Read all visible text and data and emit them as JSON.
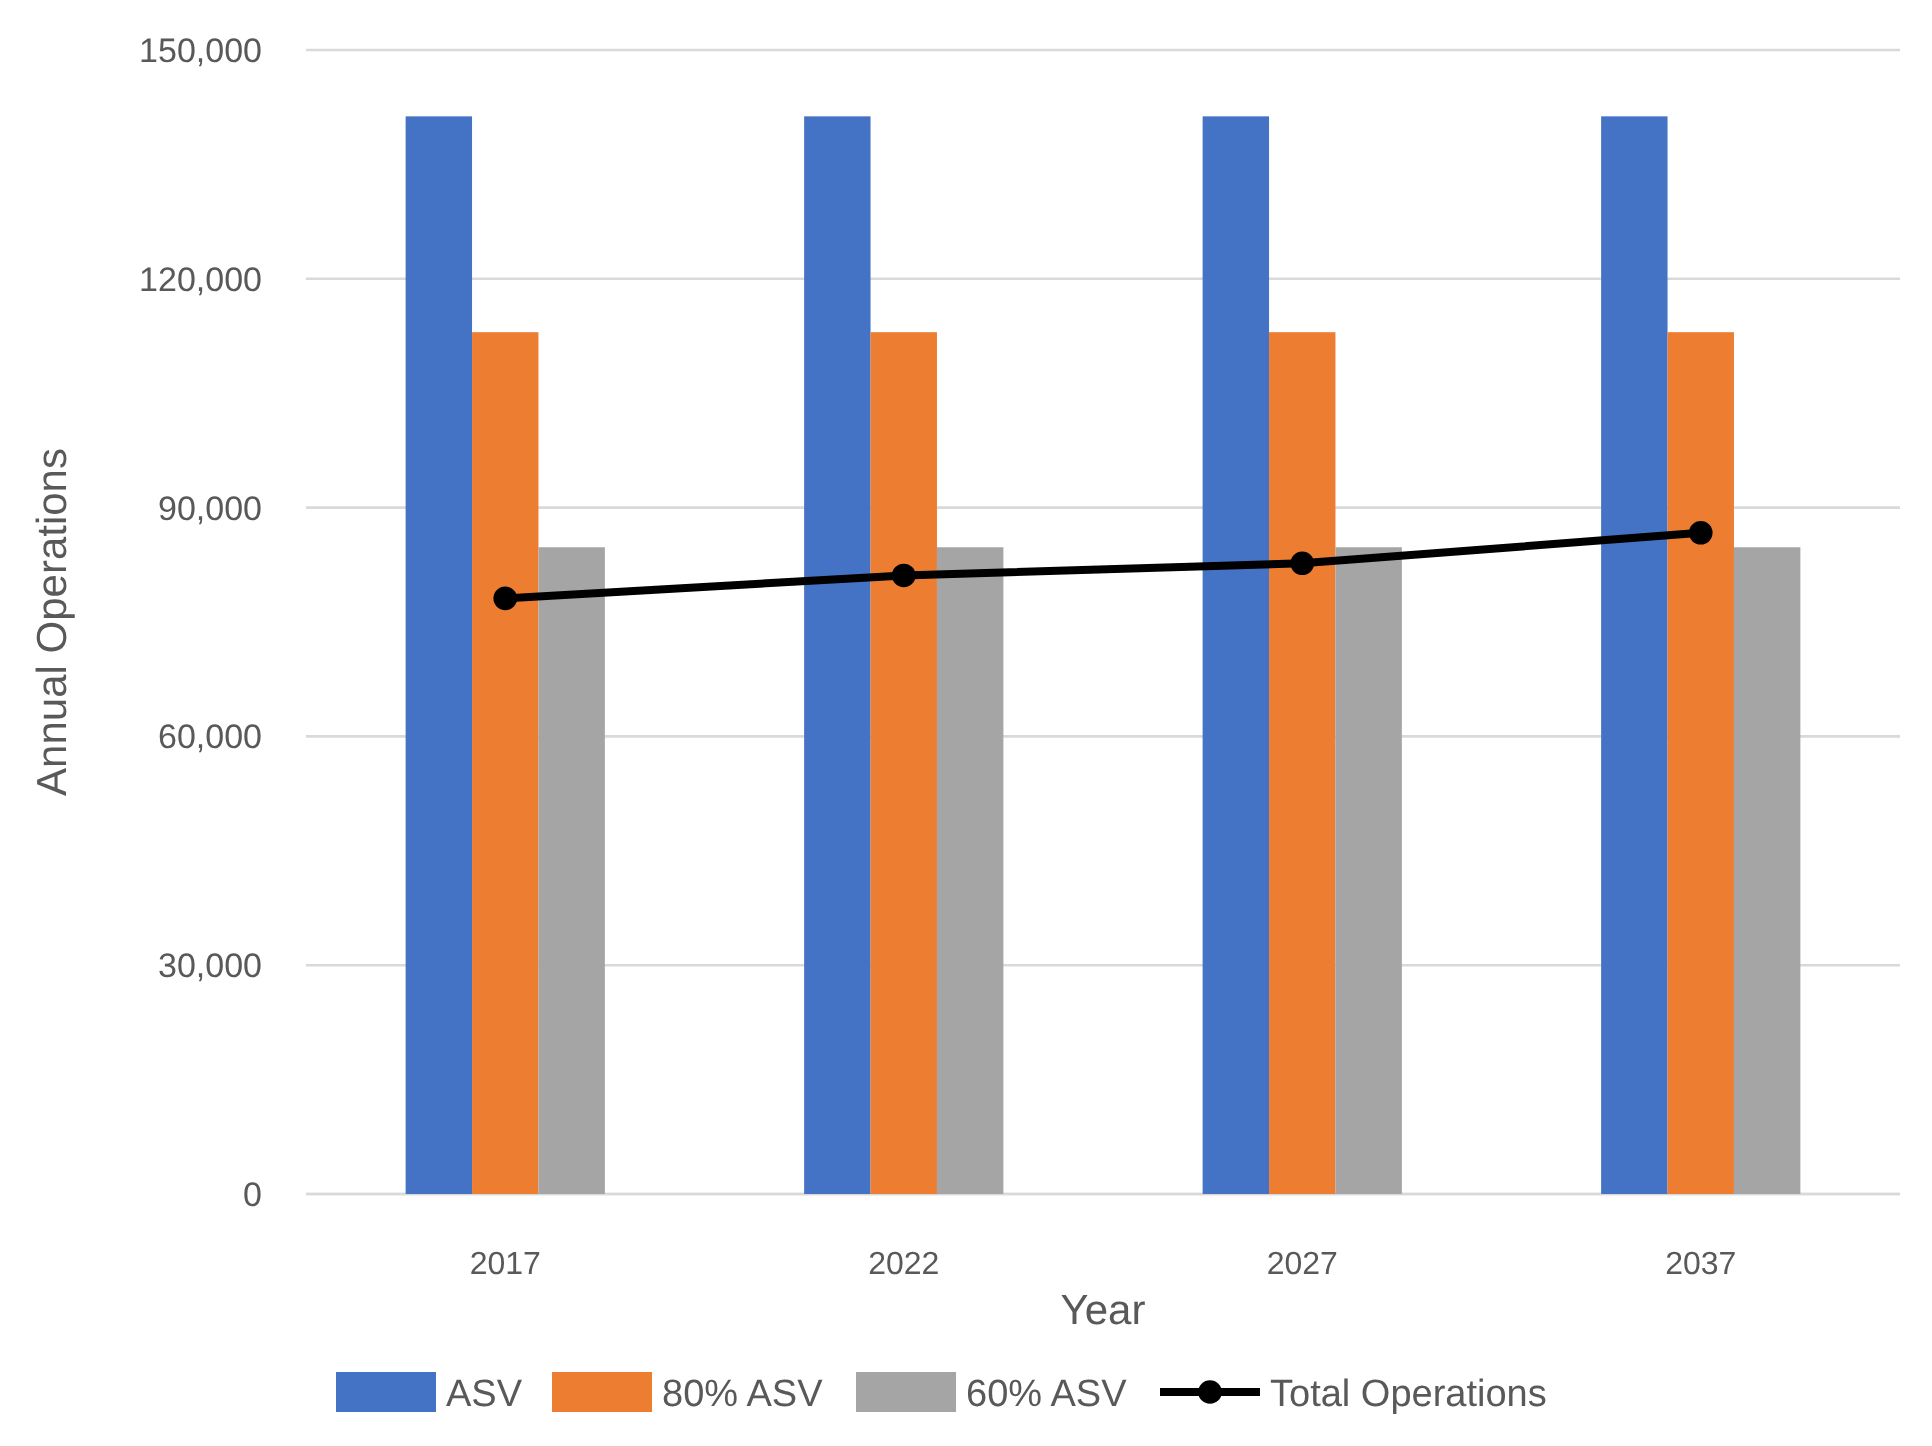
{
  "chart_data": {
    "type": "bar",
    "xlabel": "Year",
    "ylabel": "Annual Operations",
    "categories": [
      "2017",
      "2022",
      "2027",
      "2037"
    ],
    "series": [
      {
        "name": "ASV",
        "color": "#4472c4",
        "values": [
          141300,
          141300,
          141300,
          141300
        ]
      },
      {
        "name": "80% ASV",
        "color": "#ed7d31",
        "values": [
          113000,
          113000,
          113000,
          113000
        ]
      },
      {
        "name": "60% ASV",
        "color": "#a5a5a5",
        "values": [
          84800,
          84800,
          84800,
          84800
        ]
      },
      {
        "name": "Total Operations",
        "type": "line",
        "color": "#000000",
        "values": [
          78100,
          81100,
          82700,
          86700
        ]
      }
    ],
    "ylim": [
      0,
      150000
    ],
    "yticks": [
      {
        "value": 0,
        "label": "0"
      },
      {
        "value": 30000,
        "label": "30,000"
      },
      {
        "value": 60000,
        "label": "60,000"
      },
      {
        "value": 90000,
        "label": "90,000"
      },
      {
        "value": 120000,
        "label": "120,000"
      },
      {
        "value": 150000,
        "label": "150,000"
      }
    ],
    "grid": "y",
    "legend": "bottom",
    "marker": "circle"
  }
}
